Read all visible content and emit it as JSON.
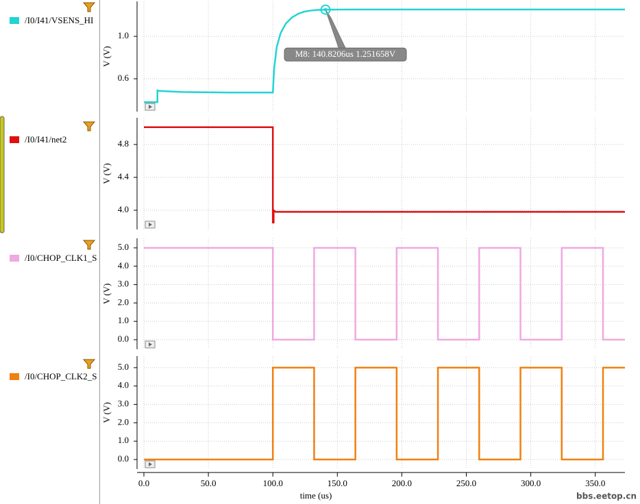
{
  "chart_data": [
    {
      "type": "line",
      "ylabel": "V (V)",
      "xlim": [
        0,
        373
      ],
      "ylim": [
        0.29,
        1.33
      ],
      "yticks": [
        {
          "value": 0.6,
          "label": "0.6"
        },
        {
          "value": 1.0,
          "label": "1.0"
        }
      ],
      "grid": true,
      "series": [
        {
          "name": "/I0/I41/VSENS_HI",
          "color": "#22d3d3",
          "x": [
            0,
            10.5,
            10.5,
            12,
            30,
            66,
            100,
            101,
            103,
            106,
            110,
            115,
            120,
            125,
            130,
            135,
            140.82,
            160,
            200,
            250,
            300,
            373
          ],
          "values": [
            0.38,
            0.38,
            0.49,
            0.485,
            0.475,
            0.47,
            0.47,
            0.7,
            0.9,
            1.03,
            1.12,
            1.18,
            1.215,
            1.235,
            1.244,
            1.249,
            1.251658,
            1.253,
            1.253,
            1.253,
            1.253,
            1.253
          ]
        }
      ],
      "markers": [
        {
          "label": "M8: 140.8206us 1.251658V",
          "x": 140.8206,
          "y": 1.251658
        }
      ]
    },
    {
      "type": "line",
      "ylabel": "V (V)",
      "xlim": [
        0,
        373
      ],
      "ylim": [
        3.767,
        5.125
      ],
      "yticks": [
        {
          "value": 4.0,
          "label": "4.0"
        },
        {
          "value": 4.4,
          "label": "4.4"
        },
        {
          "value": 4.8,
          "label": "4.8"
        }
      ],
      "grid": true,
      "series": [
        {
          "name": "/I0/I41/net2",
          "color": "#e01010",
          "x": [
            0,
            100,
            100,
            100.6,
            100.6,
            102,
            373
          ],
          "values": [
            5.01,
            5.01,
            3.85,
            3.85,
            4.0,
            3.98,
            3.98
          ]
        }
      ]
    },
    {
      "type": "line",
      "ylabel": "V (V)",
      "xlim": [
        0,
        373
      ],
      "ylim": [
        -0.52,
        5.52
      ],
      "yticks": [
        {
          "value": 0,
          "label": "0.0"
        },
        {
          "value": 1,
          "label": "1.0"
        },
        {
          "value": 2,
          "label": "2.0"
        },
        {
          "value": 3,
          "label": "3.0"
        },
        {
          "value": 4,
          "label": "4.0"
        },
        {
          "value": 5,
          "label": "5.0"
        }
      ],
      "grid": true,
      "series": [
        {
          "name": "/I0/CHOP_CLK1_S",
          "color": "#f0a8e0",
          "x": [
            0,
            100,
            100,
            132,
            132,
            164,
            164,
            196,
            196,
            228,
            228,
            260,
            260,
            292,
            292,
            324,
            324,
            356,
            356,
            373
          ],
          "values": [
            5,
            5,
            0,
            0,
            5,
            5,
            0,
            0,
            5,
            5,
            0,
            0,
            5,
            5,
            0,
            0,
            5,
            5,
            0,
            0
          ]
        }
      ]
    },
    {
      "type": "line",
      "ylabel": "V (V)",
      "xlabel": "time (us)",
      "xlim": [
        0,
        373
      ],
      "ylim": [
        -0.52,
        5.63
      ],
      "xticks": [
        {
          "value": 0,
          "label": "0.0"
        },
        {
          "value": 50,
          "label": "50.0"
        },
        {
          "value": 100,
          "label": "100.0"
        },
        {
          "value": 150,
          "label": "150.0"
        },
        {
          "value": 200,
          "label": "200.0"
        },
        {
          "value": 250,
          "label": "250.0"
        },
        {
          "value": 300,
          "label": "300.0"
        },
        {
          "value": 350,
          "label": "350.0"
        }
      ],
      "yticks": [
        {
          "value": 0,
          "label": "0.0"
        },
        {
          "value": 1,
          "label": "1.0"
        },
        {
          "value": 2,
          "label": "2.0"
        },
        {
          "value": 3,
          "label": "3.0"
        },
        {
          "value": 4,
          "label": "4.0"
        },
        {
          "value": 5,
          "label": "5.0"
        }
      ],
      "grid": true,
      "series": [
        {
          "name": "/I0/CHOP_CLK2_S",
          "color": "#f08010",
          "x": [
            0,
            100,
            100,
            132,
            132,
            164,
            164,
            196,
            196,
            228,
            228,
            260,
            260,
            292,
            292,
            324,
            324,
            356,
            356,
            373
          ],
          "values": [
            0,
            0,
            5,
            5,
            0,
            0,
            5,
            5,
            0,
            0,
            5,
            5,
            0,
            0,
            5,
            5,
            0,
            0,
            5,
            5
          ]
        }
      ]
    }
  ],
  "watermark": "bbs.eetop.cn"
}
